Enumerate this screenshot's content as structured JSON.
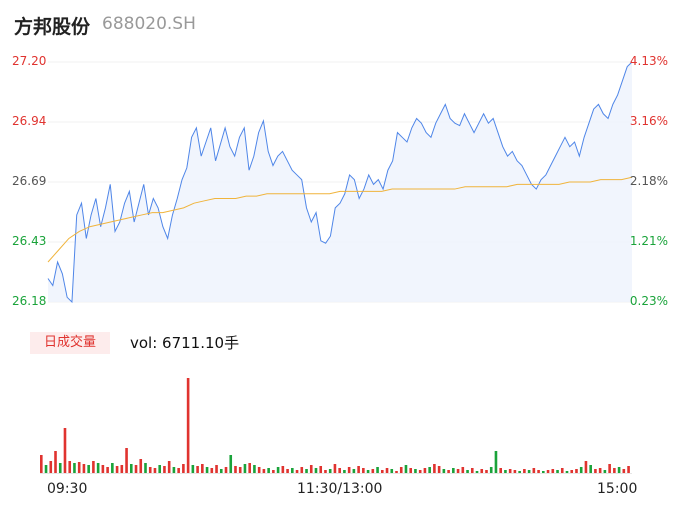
{
  "header": {
    "name": "方邦股份",
    "code": "688020.SH"
  },
  "price_axis": [
    "27.20",
    "26.94",
    "26.69",
    "26.43",
    "26.18"
  ],
  "pct_axis": [
    "4.13%",
    "3.16%",
    "2.18%",
    "1.21%",
    "0.23%"
  ],
  "volume_panel": {
    "badge": "日成交量",
    "vol_text": "vol: 6711.10手"
  },
  "time_axis": [
    "09:30",
    "11:30/13:00",
    "15:00"
  ],
  "colors": {
    "up": "#e0332f",
    "down": "#1aa33a",
    "price": "#4f86e8",
    "avg": "#f0b43c"
  },
  "chart_data": [
    {
      "type": "line",
      "series": [
        {
          "values": [
            26.28,
            26.25,
            26.35,
            26.3,
            26.2,
            26.18,
            26.55,
            26.6,
            26.45,
            26.55,
            26.62,
            26.5,
            26.58,
            26.68,
            26.48,
            26.52,
            26.6,
            26.65,
            26.52,
            26.6,
            26.68,
            26.55,
            26.62,
            26.58,
            26.5,
            26.45,
            26.55,
            26.62,
            26.7,
            26.75,
            26.88,
            26.92,
            26.8,
            26.86,
            26.92,
            26.78,
            26.85,
            26.92,
            26.84,
            26.8,
            26.88,
            26.92,
            26.74,
            26.8,
            26.9,
            26.95,
            26.82,
            26.76,
            26.8,
            26.82,
            26.78,
            26.74,
            26.72,
            26.7,
            26.58,
            26.52,
            26.56,
            26.44,
            26.43,
            26.46,
            26.58,
            26.6,
            26.64,
            26.72,
            26.7,
            26.62,
            26.66,
            26.72,
            26.68,
            26.7,
            26.66,
            26.74,
            26.78,
            26.9,
            26.88,
            26.86,
            26.92,
            26.96,
            26.94,
            26.9,
            26.88,
            26.94,
            26.98,
            27.02,
            26.96,
            26.94,
            26.93,
            26.98,
            26.94,
            26.9,
            26.94,
            26.98,
            26.94,
            26.96,
            26.9,
            26.84,
            26.8,
            26.82,
            26.78,
            26.76,
            26.72,
            26.68,
            26.66,
            26.7,
            26.72,
            26.76,
            26.8,
            26.84,
            26.88,
            26.84,
            26.86,
            26.8,
            26.88,
            26.94,
            27.0,
            27.02,
            26.98,
            26.96,
            27.02,
            27.06,
            27.12,
            27.18,
            27.2
          ],
          "x_range": "09:30-15:00"
        },
        {
          "values": [
            26.35,
            26.4,
            26.45,
            26.48,
            26.5,
            26.51,
            26.52,
            26.53,
            26.54,
            26.55,
            26.56,
            26.56,
            26.57,
            26.58,
            26.6,
            26.61,
            26.62,
            26.62,
            26.62,
            26.63,
            26.63,
            26.64,
            26.64,
            26.64,
            26.64,
            26.64,
            26.64,
            26.64,
            26.65,
            26.65,
            26.65,
            26.65,
            26.65,
            26.66,
            26.66,
            26.66,
            26.66,
            26.66,
            26.66,
            26.66,
            26.67,
            26.67,
            26.67,
            26.67,
            26.67,
            26.68,
            26.68,
            26.68,
            26.68,
            26.68,
            26.69,
            26.69,
            26.69,
            26.7,
            26.7,
            26.7,
            26.71
          ],
          "x_range": "09:30-15:00"
        }
      ],
      "ylim": [
        26.18,
        27.2
      ],
      "y_ticks": [
        "27.20",
        "26.94",
        "26.69",
        "26.43",
        "26.18"
      ],
      "y2_ticks": [
        "4.13%",
        "3.16%",
        "2.18%",
        "1.21%",
        "0.23%"
      ],
      "x_ticks": [
        "09:30",
        "11:30/13:00",
        "15:00"
      ]
    },
    {
      "type": "bar",
      "values": [
        18,
        8,
        12,
        22,
        10,
        45,
        12,
        10,
        11,
        9,
        8,
        12,
        10,
        8,
        6,
        10,
        7,
        8,
        25,
        9,
        8,
        14,
        10,
        6,
        5,
        8,
        7,
        12,
        6,
        5,
        9,
        95,
        8,
        7,
        9,
        6,
        5,
        8,
        4,
        6,
        18,
        7,
        6,
        9,
        10,
        8,
        6,
        4,
        5,
        3,
        6,
        7,
        4,
        5,
        3,
        6,
        4,
        8,
        5,
        7,
        3,
        4,
        9,
        5,
        3,
        6,
        4,
        7,
        5,
        3,
        4,
        6,
        3,
        5,
        4,
        2,
        6,
        8,
        5,
        4,
        3,
        5,
        6,
        9,
        7,
        4,
        3,
        5,
        4,
        6,
        3,
        5,
        2,
        4,
        3,
        6,
        22,
        5,
        3,
        4,
        3,
        2,
        4,
        3,
        5,
        3,
        2,
        3,
        4,
        3,
        5,
        2,
        3,
        4,
        6,
        12,
        8,
        4,
        5,
        3,
        9,
        5,
        6,
        4,
        7
      ],
      "up": [
        true,
        false,
        true,
        true,
        false,
        true,
        true,
        false,
        true,
        true,
        false,
        true,
        false,
        true,
        true,
        false,
        true,
        true,
        true,
        false,
        true,
        true,
        false,
        true,
        true,
        false,
        true,
        true,
        false,
        true,
        true,
        true,
        false,
        true,
        true,
        false,
        true,
        true,
        false,
        true,
        false,
        true,
        true,
        false,
        true,
        false,
        true,
        true,
        false,
        true,
        false,
        true,
        true,
        false,
        true,
        true,
        false,
        true,
        false,
        true,
        true,
        false,
        true,
        true,
        false,
        true,
        false,
        true,
        true,
        false,
        true,
        false,
        true,
        true,
        false,
        true,
        true,
        false,
        true,
        false,
        true,
        true,
        false,
        true,
        true,
        false,
        true,
        false,
        true,
        true,
        false,
        true,
        false,
        true,
        true,
        false,
        false,
        true,
        false,
        true,
        true,
        false,
        true,
        false,
        true,
        true,
        false,
        true,
        true,
        false,
        true,
        false,
        true,
        true,
        false,
        true,
        false,
        true,
        true,
        false,
        true,
        true,
        false,
        true,
        true
      ]
    }
  ]
}
